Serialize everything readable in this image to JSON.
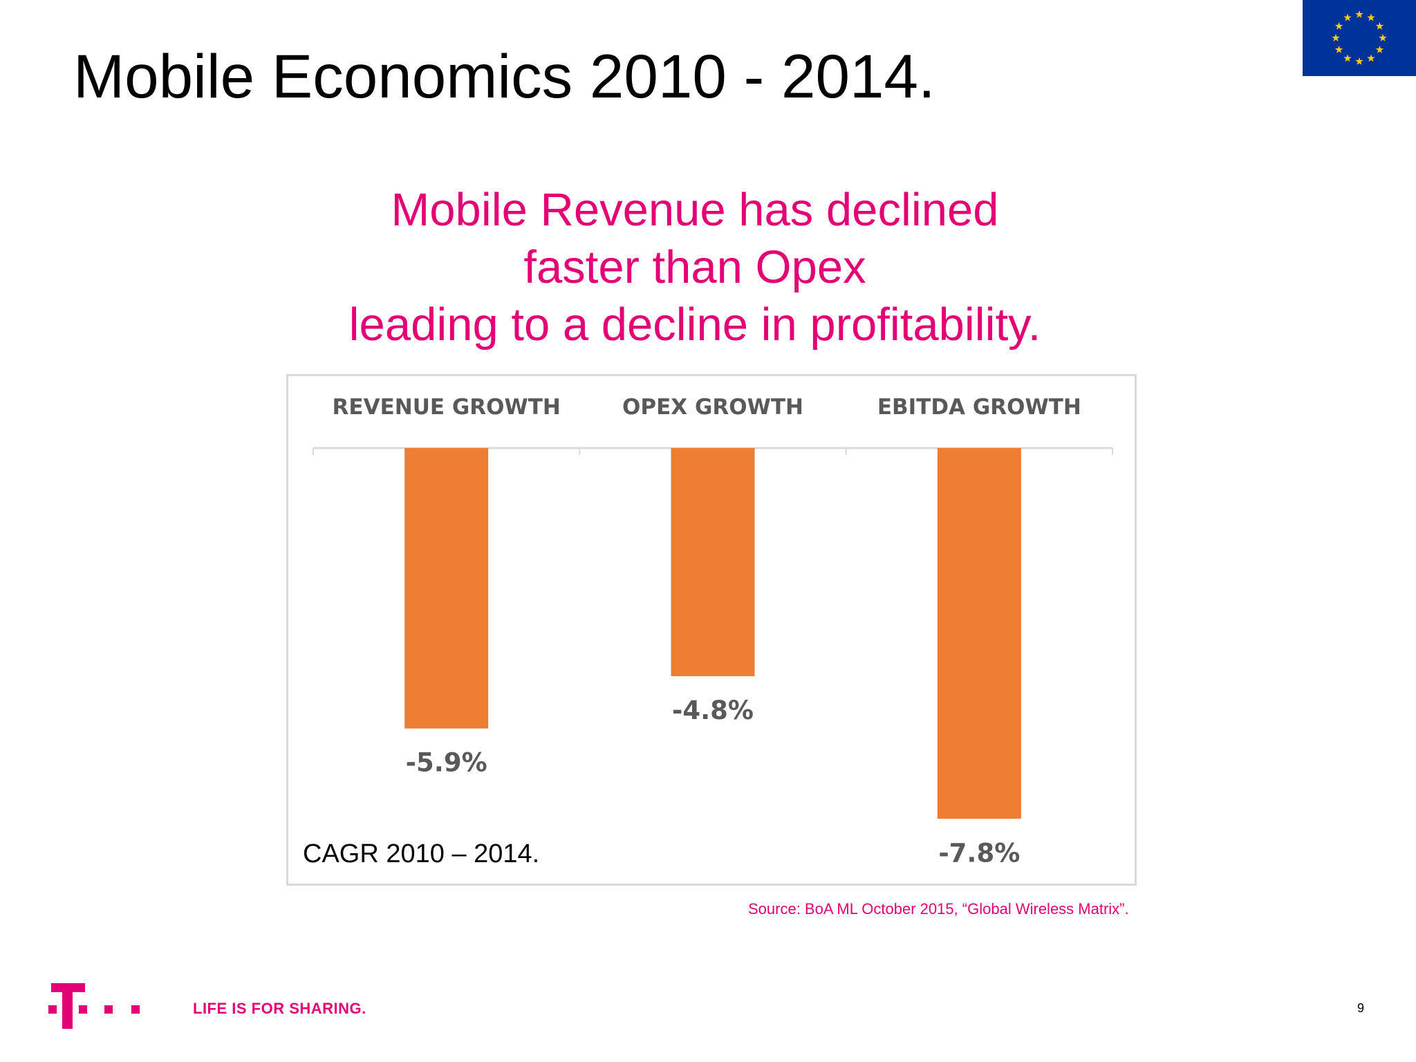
{
  "slide": {
    "title": "Mobile Economics 2010 - 2014.",
    "headline_lines": [
      "Mobile Revenue has declined",
      "faster than Opex",
      "leading to a decline in profitability."
    ],
    "cagr_note": "CAGR 2010 – 2014.",
    "source": "Source: BoA ML October 2015, “Global Wireless Matrix”.",
    "tagline": "LIFE IS FOR SHARING.",
    "page_number": "9"
  },
  "colors": {
    "brand_magenta": "#e20074",
    "bar_orange": "#ed7d31",
    "label_gray": "#595959",
    "axis_gray": "#d9d9d9",
    "eu_blue": "#003399",
    "eu_star": "#ffcc00"
  },
  "icons": {
    "eu_flag": "eu-flag-icon",
    "telekom_logo": "telekom-t-logo"
  },
  "chart_data": {
    "type": "bar",
    "categories": [
      "REVENUE GROWTH",
      "OPEX GROWTH",
      "EBITDA GROWTH"
    ],
    "values": [
      -5.9,
      -4.8,
      -7.8
    ],
    "value_labels": [
      "-5.9%",
      "-4.8%",
      "-7.8%"
    ],
    "value_unit": "%",
    "ylim": [
      -8,
      0
    ],
    "category_axis_position": "top",
    "grid": false,
    "legend": "none",
    "xlabel": "",
    "ylabel": ""
  }
}
